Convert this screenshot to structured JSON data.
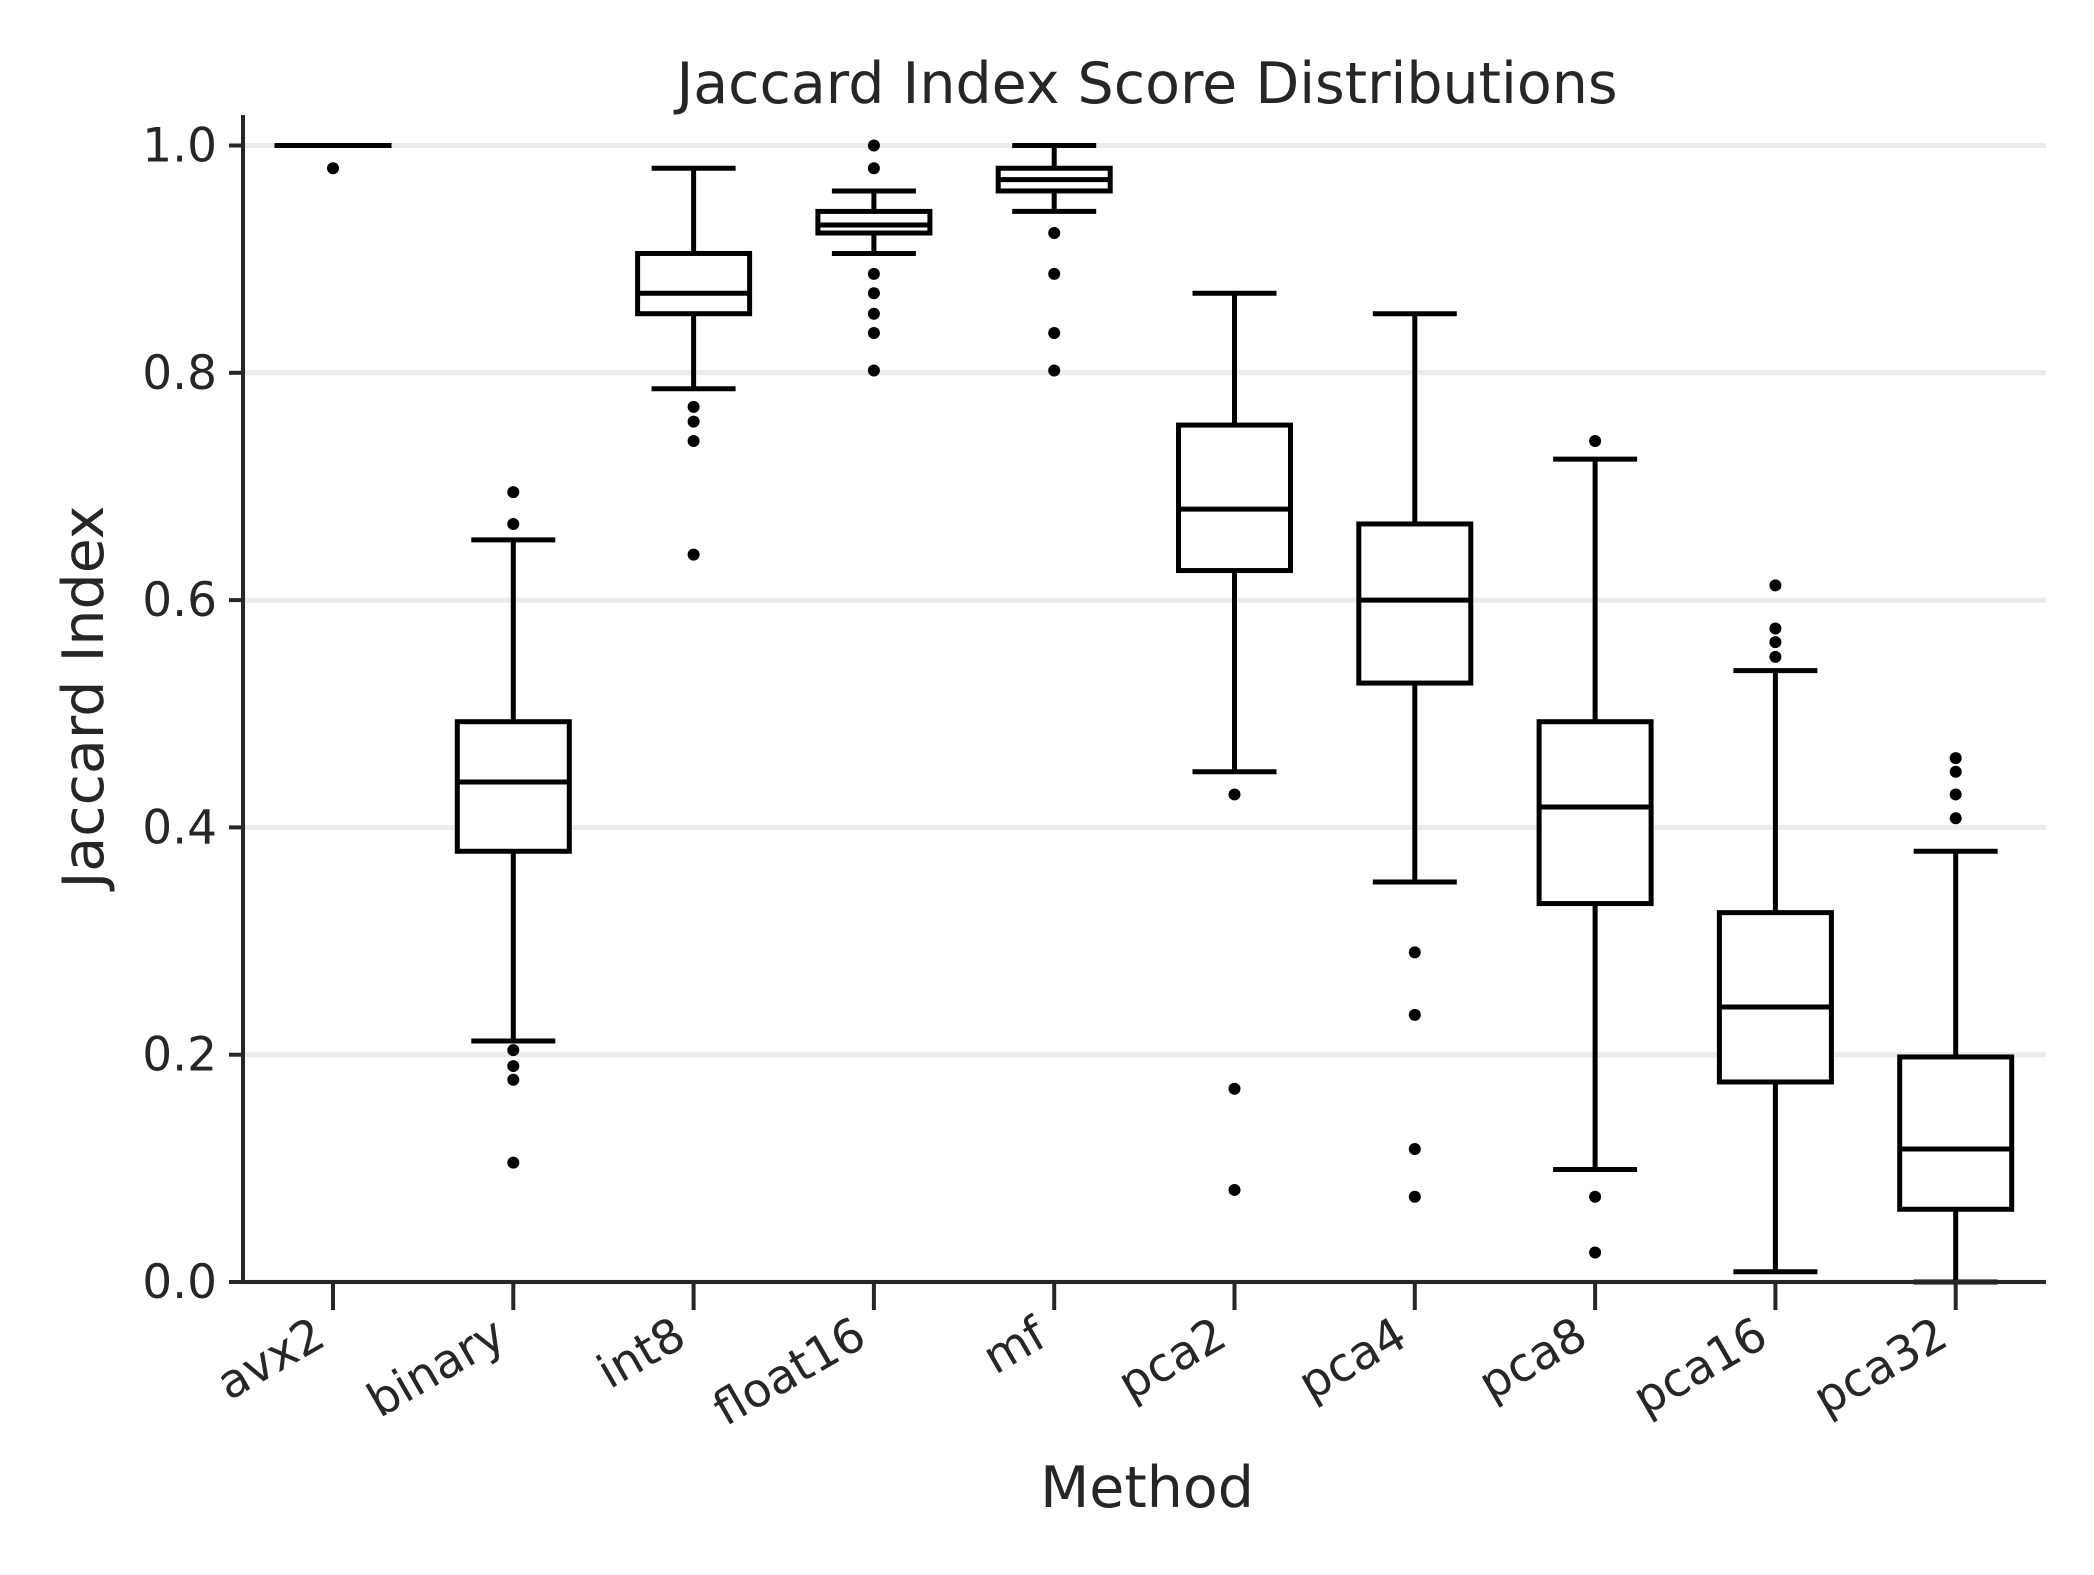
{
  "chart_data": {
    "type": "box",
    "title": "Jaccard Index Score Distributions",
    "xlabel": "Method",
    "ylabel": "Jaccard Index",
    "ylim": [
      0.0,
      1.0
    ],
    "yticks": [
      0.0,
      0.2,
      0.4,
      0.6,
      0.8,
      1.0
    ],
    "ytick_labels": [
      "0.0",
      "0.2",
      "0.4",
      "0.6",
      "0.8",
      "1.0"
    ],
    "grid": "horizontal",
    "colors": {
      "box": "#000000",
      "grid": "#ebebeb",
      "axis": "#262626",
      "background": "#ffffff"
    },
    "categories": [
      "avx2",
      "binary",
      "int8",
      "float16",
      "mf",
      "pca2",
      "pca4",
      "pca8",
      "pca16",
      "pca32"
    ],
    "boxes": [
      {
        "whisker_low": 1.0,
        "q1": 1.0,
        "median": 1.0,
        "q3": 1.0,
        "whisker_high": 1.0,
        "outliers": [
          0.98
        ]
      },
      {
        "whisker_low": 0.212,
        "q1": 0.379,
        "median": 0.44,
        "q3": 0.493,
        "whisker_high": 0.653,
        "outliers": [
          0.695,
          0.667,
          0.204,
          0.19,
          0.178,
          0.105
        ]
      },
      {
        "whisker_low": 0.786,
        "q1": 0.852,
        "median": 0.87,
        "q3": 0.905,
        "whisker_high": 0.98,
        "outliers": [
          0.77,
          0.757,
          0.74,
          0.64
        ]
      },
      {
        "whisker_low": 0.905,
        "q1": 0.923,
        "median": 0.93,
        "q3": 0.942,
        "whisker_high": 0.96,
        "outliers": [
          1.0,
          0.98,
          0.887,
          0.87,
          0.852,
          0.835,
          0.802
        ]
      },
      {
        "whisker_low": 0.942,
        "q1": 0.96,
        "median": 0.97,
        "q3": 0.98,
        "whisker_high": 1.0,
        "outliers": [
          0.923,
          0.887,
          0.835,
          0.802
        ]
      },
      {
        "whisker_low": 0.449,
        "q1": 0.626,
        "median": 0.68,
        "q3": 0.754,
        "whisker_high": 0.87,
        "outliers": [
          0.429,
          0.17,
          0.081
        ]
      },
      {
        "whisker_low": 0.352,
        "q1": 0.527,
        "median": 0.6,
        "q3": 0.667,
        "whisker_high": 0.852,
        "outliers": [
          0.29,
          0.235,
          0.117,
          0.075
        ]
      },
      {
        "whisker_low": 0.099,
        "q1": 0.333,
        "median": 0.418,
        "q3": 0.493,
        "whisker_high": 0.724,
        "outliers": [
          0.74,
          0.075,
          0.026
        ]
      },
      {
        "whisker_low": 0.009,
        "q1": 0.176,
        "median": 0.242,
        "q3": 0.325,
        "whisker_high": 0.538,
        "outliers": [
          0.613,
          0.575,
          0.563,
          0.55
        ]
      },
      {
        "whisker_low": 0.0,
        "q1": 0.064,
        "median": 0.117,
        "q3": 0.198,
        "whisker_high": 0.379,
        "outliers": [
          0.461,
          0.449,
          0.429,
          0.408
        ]
      }
    ]
  }
}
